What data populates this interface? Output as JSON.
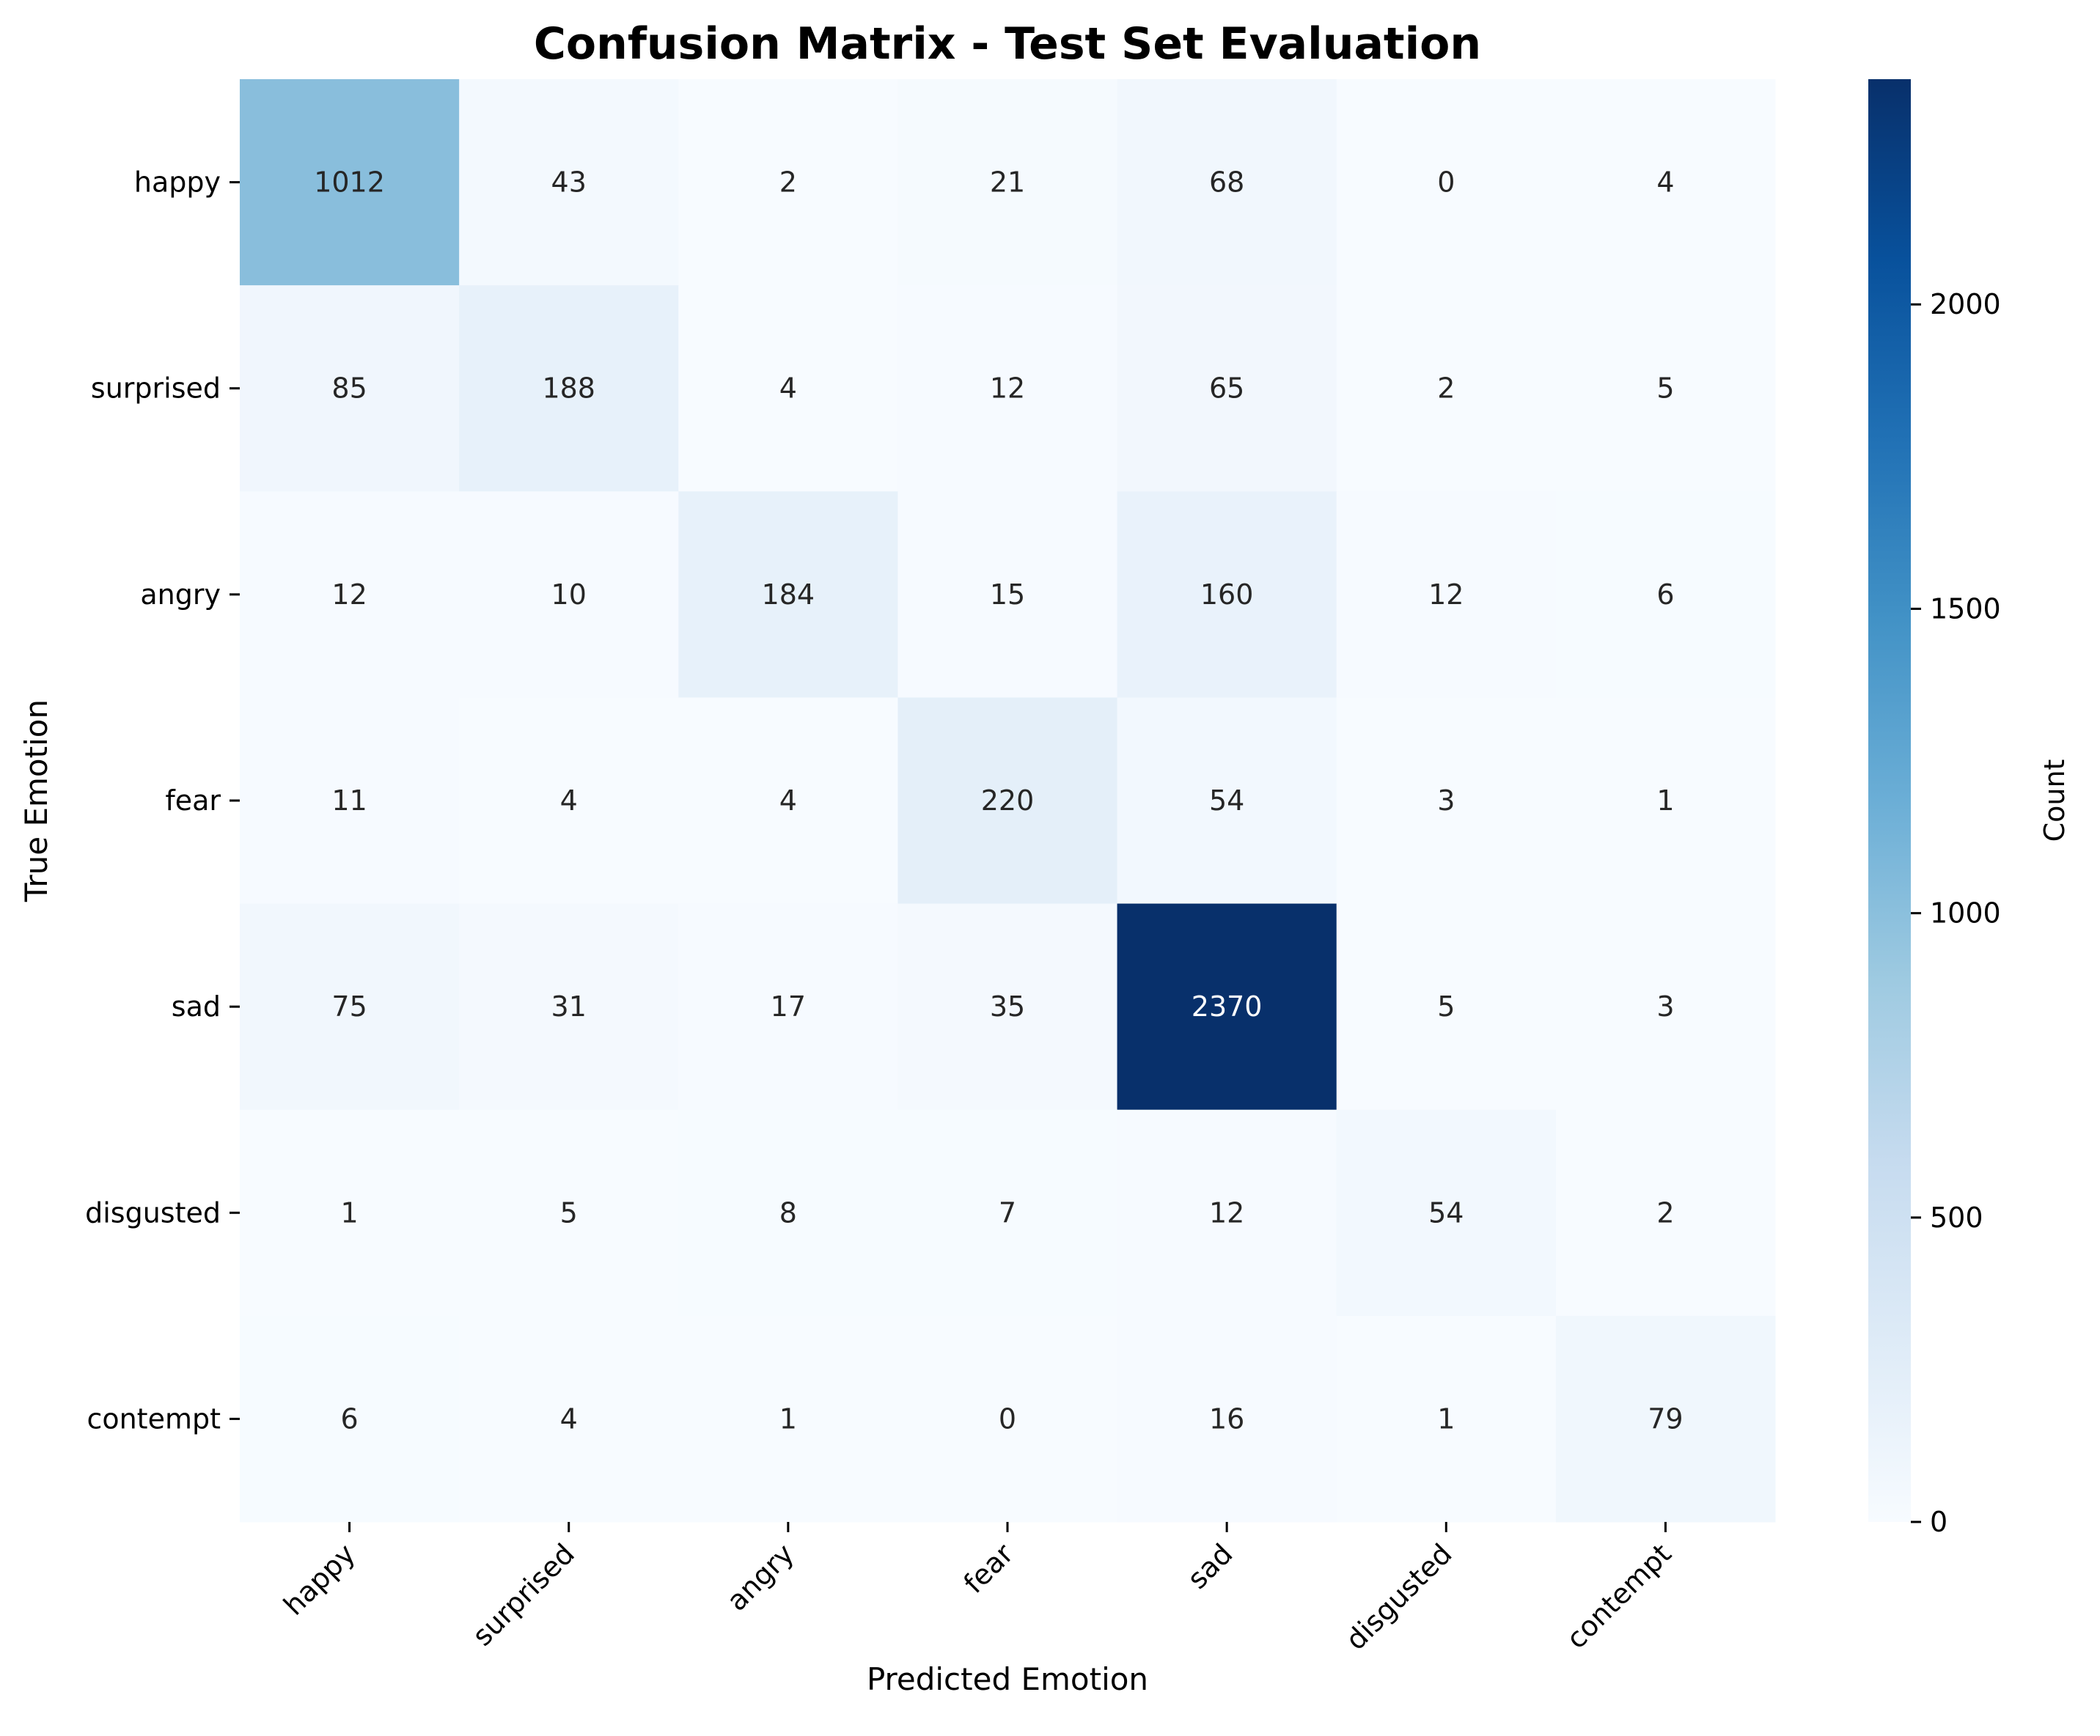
{
  "chart_data": {
    "type": "heatmap",
    "title": "Confusion Matrix - Test Set Evaluation",
    "xlabel": "Predicted Emotion",
    "ylabel": "True Emotion",
    "x_categories": [
      "happy",
      "surprised",
      "angry",
      "fear",
      "sad",
      "disgusted",
      "contempt"
    ],
    "y_categories": [
      "happy",
      "surprised",
      "angry",
      "fear",
      "sad",
      "disgusted",
      "contempt"
    ],
    "values": [
      [
        1012,
        43,
        2,
        21,
        68,
        0,
        4
      ],
      [
        85,
        188,
        4,
        12,
        65,
        2,
        5
      ],
      [
        12,
        10,
        184,
        15,
        160,
        12,
        6
      ],
      [
        11,
        4,
        4,
        220,
        54,
        3,
        1
      ],
      [
        75,
        31,
        17,
        35,
        2370,
        5,
        3
      ],
      [
        1,
        5,
        8,
        7,
        12,
        54,
        2
      ],
      [
        6,
        4,
        1,
        0,
        16,
        1,
        79
      ]
    ],
    "colormap": "Blues",
    "colormap_stops": [
      "#f7fbff",
      "#deebf7",
      "#c6dbef",
      "#9ecae1",
      "#6baed6",
      "#4292c6",
      "#2171b5",
      "#08519c",
      "#08306b"
    ],
    "vmin": 0,
    "vmax": 2370,
    "colorbar": {
      "label": "Count",
      "ticks": [
        0,
        500,
        1000,
        1500,
        2000
      ]
    },
    "grid": false
  }
}
